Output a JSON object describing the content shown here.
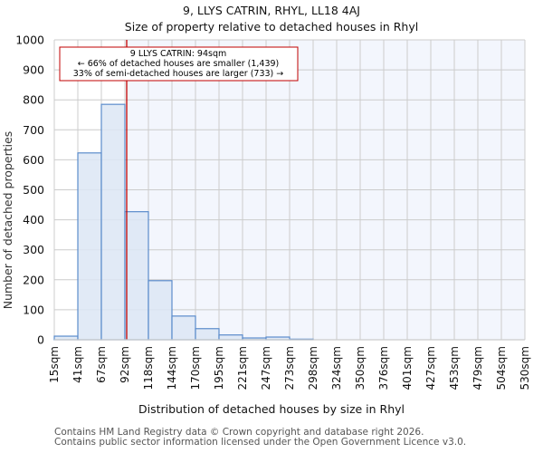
{
  "header": {
    "title": "9, LLYS CATRIN, RHYL, LL18 4AJ",
    "subtitle": "Size of property relative to detached houses in Rhyl"
  },
  "annotation": {
    "line1": "9 LLYS CATRIN: 94sqm",
    "line2": "← 66% of detached houses are smaller (1,439)",
    "line3": "33% of semi-detached houses are larger (733) →",
    "marker_value_sqm": 94
  },
  "footer": {
    "line1": "Contains HM Land Registry data © Crown copyright and database right 2026.",
    "line2": "Contains public sector information licensed under the Open Government Licence v3.0."
  },
  "colors": {
    "bar_fill": "#dce6f4",
    "bar_edge": "#5b8ccb",
    "marker_line": "#c00000",
    "highlight_region": "#f3f6fd",
    "grid": "#cccccc"
  },
  "chart_data": {
    "type": "bar",
    "title": "9, LLYS CATRIN, RHYL, LL18 4AJ",
    "subtitle": "Size of property relative to detached houses in Rhyl",
    "xlabel": "Distribution of detached houses by size in Rhyl",
    "ylabel": "Number of detached properties",
    "ylim": [
      0,
      1000
    ],
    "yticks": [
      0,
      100,
      200,
      300,
      400,
      500,
      600,
      700,
      800,
      900,
      1000
    ],
    "grid": true,
    "categories": [
      "15sqm",
      "41sqm",
      "67sqm",
      "92sqm",
      "118sqm",
      "144sqm",
      "170sqm",
      "195sqm",
      "221sqm",
      "247sqm",
      "273sqm",
      "298sqm",
      "324sqm",
      "350sqm",
      "376sqm",
      "401sqm",
      "427sqm",
      "453sqm",
      "479sqm",
      "504sqm",
      "530sqm"
    ],
    "bin_edges_sqm": [
      15,
      41,
      67,
      92,
      118,
      144,
      170,
      195,
      221,
      247,
      273,
      298,
      324,
      350,
      376,
      401,
      427,
      453,
      479,
      504,
      530
    ],
    "values": [
      12,
      623,
      785,
      427,
      197,
      79,
      37,
      16,
      6,
      9,
      2,
      0,
      0,
      0,
      0,
      0,
      0,
      0,
      0,
      0
    ],
    "marker": {
      "x": 94,
      "label": "9 LLYS CATRIN: 94sqm"
    }
  }
}
